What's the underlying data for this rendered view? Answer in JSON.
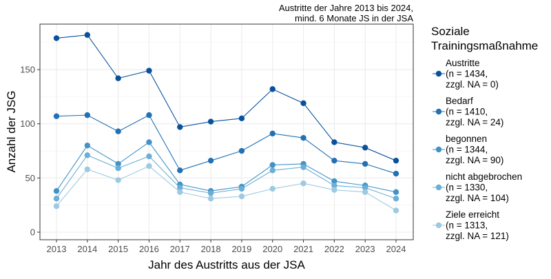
{
  "chart_data": {
    "type": "line",
    "title": "Austritte der Jahre 2013 bis 2024,\nmind. 6 Monate JS in der JSA",
    "title_lines": [
      "Austritte der Jahre 2013 bis 2024,",
      "mind. 6 Monate JS in der JSA"
    ],
    "xlabel": "Jahr des Austritts aus der JSA",
    "ylabel": "Anzahl der JSG",
    "x": [
      2013,
      2014,
      2015,
      2016,
      2017,
      2018,
      2019,
      2020,
      2021,
      2022,
      2023,
      2024
    ],
    "x_tick_labels": [
      "2013",
      "2014",
      "2015",
      "2016",
      "2017",
      "2018",
      "2019",
      "2020",
      "2021",
      "2022",
      "2023",
      "2024"
    ],
    "y_ticks": [
      0,
      50,
      100,
      150
    ],
    "y_tick_labels": [
      "0",
      "50",
      "100",
      "150"
    ],
    "ylim": [
      -7,
      192
    ],
    "grid": true,
    "legend_title": [
      "Soziale",
      "Trainingsmaßnahme"
    ],
    "legend_placement": "right",
    "series": [
      {
        "name": "Austritte",
        "legend": [
          "Austritte",
          "(n = 1434,",
          "zzgl. NA = 0)"
        ],
        "color": "#08519c",
        "values": [
          179,
          182,
          142,
          149,
          97,
          102,
          105,
          132,
          119,
          83,
          78,
          66
        ]
      },
      {
        "name": "Bedarf",
        "legend": [
          "Bedarf",
          "(n = 1410,",
          "zzgl. NA = 24)"
        ],
        "color": "#2171b5",
        "values": [
          107,
          108,
          93,
          108,
          57,
          66,
          75,
          91,
          87,
          66,
          63,
          54
        ]
      },
      {
        "name": "begonnen",
        "legend": [
          "begonnen",
          "(n = 1344,",
          "zzgl. NA = 90)"
        ],
        "color": "#4292c6",
        "values": [
          38,
          80,
          63,
          83,
          44,
          38,
          42,
          62,
          63,
          47,
          43,
          37
        ]
      },
      {
        "name": "nicht abgebrochen",
        "legend": [
          "nicht abgebrochen",
          "(n = 1330,",
          "zzgl. NA = 104)"
        ],
        "color": "#6baed6",
        "values": [
          31,
          71,
          59,
          70,
          41,
          36,
          40,
          57,
          60,
          43,
          41,
          31
        ]
      },
      {
        "name": "Ziele erreicht",
        "legend": [
          "Ziele erreicht",
          "(n = 1313,",
          "zzgl. NA = 121)"
        ],
        "color": "#9ecae1",
        "values": [
          24,
          58,
          48,
          61,
          37,
          31,
          33,
          40,
          45,
          39,
          37,
          20
        ]
      }
    ]
  }
}
